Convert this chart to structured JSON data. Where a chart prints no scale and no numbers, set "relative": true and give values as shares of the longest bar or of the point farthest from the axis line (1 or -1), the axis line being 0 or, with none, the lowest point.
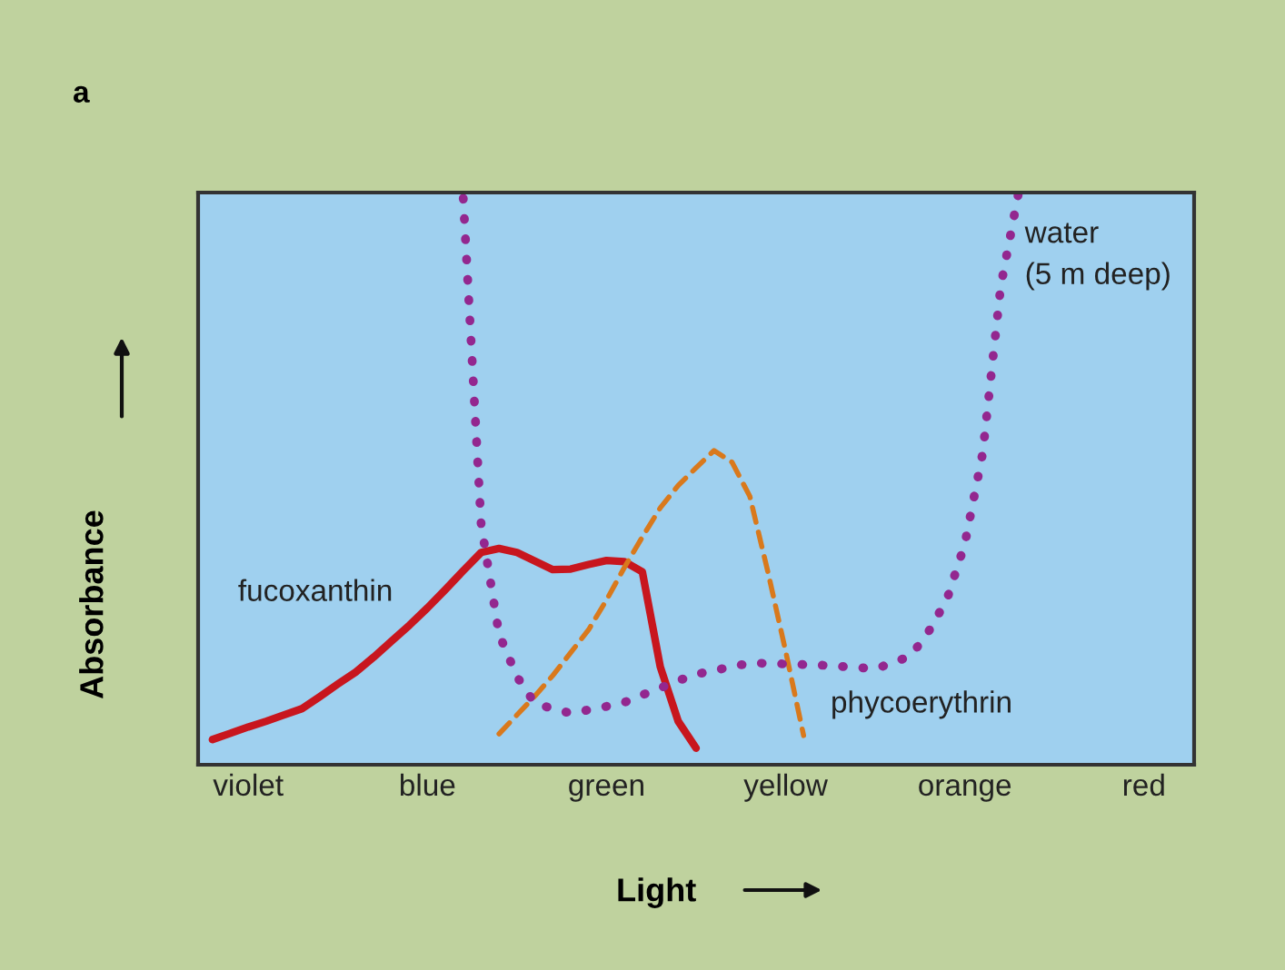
{
  "chart_data": {
    "type": "line",
    "relative": true,
    "xlabel": "Light",
    "ylabel": "Absorbance",
    "annotations": [
      "a"
    ],
    "categories": [
      null,
      null,
      "violet",
      null,
      null,
      null,
      null,
      null,
      null,
      null,
      null,
      null,
      "blue",
      null,
      null,
      null,
      null,
      null,
      null,
      null,
      null,
      null,
      "green",
      null,
      null,
      null,
      null,
      null,
      null,
      null,
      null,
      null,
      "yellow",
      null,
      null,
      null,
      null,
      null,
      null,
      null,
      null,
      null,
      "orange",
      null,
      null,
      null,
      null,
      null,
      null,
      null,
      null,
      null,
      "red",
      null,
      null
    ],
    "series": [
      {
        "name": "fucoxanthin",
        "color": "#c8161e",
        "line_style": "solid",
        "values": [
          0.044,
          0.055,
          0.066,
          0.076,
          0.087,
          0.098,
          0.119,
          0.141,
          0.162,
          0.188,
          0.216,
          0.244,
          0.274,
          0.306,
          0.339,
          0.371,
          0.378,
          0.371,
          0.356,
          0.341,
          0.342,
          0.35,
          0.357,
          0.355,
          0.337,
          0.171,
          0.076,
          0.029,
          null,
          null,
          null,
          null,
          null,
          null,
          null,
          null,
          null,
          null,
          null,
          null,
          null,
          null,
          null,
          null,
          null,
          null,
          null,
          null,
          null,
          null,
          null,
          null,
          null,
          null,
          null
        ]
      },
      {
        "name": "phycoerythrin",
        "color": "#d9791c",
        "line_style": "dashed",
        "values": [
          null,
          null,
          null,
          null,
          null,
          null,
          null,
          null,
          null,
          null,
          null,
          null,
          null,
          null,
          null,
          null,
          0.054,
          0.087,
          0.12,
          0.156,
          0.196,
          0.236,
          0.288,
          0.345,
          0.398,
          0.449,
          0.488,
          0.519,
          0.549,
          0.529,
          0.469,
          0.338,
          0.198,
          0.051,
          null,
          null,
          null,
          null,
          null,
          null,
          null,
          null,
          null,
          null,
          null,
          null,
          null,
          null,
          null,
          null,
          null,
          null,
          null,
          null,
          null
        ]
      },
      {
        "name": "water\n(5 m deep)",
        "color": "#93278f",
        "line_style": "dotted",
        "values": [
          null,
          null,
          null,
          null,
          null,
          null,
          null,
          null,
          null,
          null,
          null,
          null,
          null,
          null,
          0.99,
          0.42,
          0.228,
          0.154,
          0.107,
          0.098,
          0.09,
          0.096,
          0.102,
          0.109,
          0.122,
          0.134,
          0.147,
          0.158,
          0.165,
          0.171,
          0.178,
          0.177,
          0.176,
          0.175,
          0.174,
          0.172,
          0.17,
          0.168,
          0.178,
          0.191,
          0.234,
          0.289,
          0.386,
          0.545,
          0.835,
          1.0,
          null,
          null,
          null,
          null,
          null,
          null,
          null,
          null,
          null
        ]
      }
    ]
  }
}
